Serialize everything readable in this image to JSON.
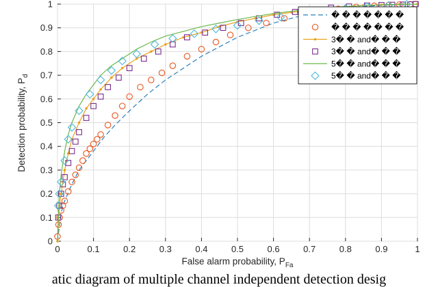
{
  "caption": "atic diagram of multiple channel independent detection desig",
  "chart_data": {
    "type": "line",
    "xlabel": "False alarm probability, P",
    "xlabel_sub": "Fa",
    "ylabel": "Detection probability, P",
    "ylabel_sub": "d",
    "xlim": [
      0,
      1
    ],
    "ylim": [
      0,
      1
    ],
    "xticks": [
      "0",
      "0.1",
      "0.2",
      "0.3",
      "0.4",
      "0.5",
      "0.6",
      "0.7",
      "0.8",
      "0.9",
      "1"
    ],
    "yticks": [
      "0",
      "0.1",
      "0.2",
      "0.3",
      "0.4",
      "0.5",
      "0.6",
      "0.7",
      "0.8",
      "0.9",
      "1"
    ],
    "grid": true,
    "legend_position": "top-right",
    "series": [
      {
        "name": "� � � � � � �",
        "style": "dashed",
        "marker": "none",
        "color": "#2a7fbd",
        "x": [
          0,
          0.01,
          0.02,
          0.04,
          0.06,
          0.08,
          0.1,
          0.13,
          0.16,
          0.2,
          0.25,
          0.3,
          0.35,
          0.4,
          0.45,
          0.5,
          0.55,
          0.6,
          0.65,
          0.7,
          0.75,
          0.8,
          0.85,
          0.9,
          0.95,
          1
        ],
        "y": [
          0,
          0.12,
          0.17,
          0.24,
          0.3,
          0.34,
          0.38,
          0.44,
          0.49,
          0.55,
          0.62,
          0.68,
          0.73,
          0.78,
          0.82,
          0.86,
          0.89,
          0.92,
          0.94,
          0.96,
          0.975,
          0.985,
          0.99,
          0.995,
          0.998,
          1
        ]
      },
      {
        "name": "� � � � � � �",
        "style": "none",
        "marker": "circle",
        "color": "#e8541c",
        "x": [
          0,
          0.003,
          0.006,
          0.01,
          0.015,
          0.02,
          0.03,
          0.04,
          0.05,
          0.06,
          0.07,
          0.08,
          0.09,
          0.1,
          0.11,
          0.12,
          0.14,
          0.16,
          0.18,
          0.2,
          0.23,
          0.26,
          0.29,
          0.32,
          0.36,
          0.4,
          0.44,
          0.48,
          0.53,
          0.58,
          0.63,
          0.68,
          0.73,
          0.78,
          0.83,
          0.88,
          0.92,
          0.95,
          0.98,
          0.995
        ],
        "y": [
          0.02,
          0.07,
          0.1,
          0.13,
          0.15,
          0.17,
          0.21,
          0.25,
          0.28,
          0.31,
          0.34,
          0.37,
          0.39,
          0.41,
          0.43,
          0.45,
          0.49,
          0.53,
          0.57,
          0.61,
          0.65,
          0.68,
          0.71,
          0.74,
          0.78,
          0.81,
          0.84,
          0.87,
          0.9,
          0.92,
          0.94,
          0.96,
          0.97,
          0.98,
          0.988,
          0.993,
          0.996,
          0.998,
          0.999,
          1
        ]
      },
      {
        "name": "3� � and� � �",
        "style": "solid",
        "marker": "dot",
        "color": "#e8a21c",
        "x": [
          0,
          0.005,
          0.01,
          0.02,
          0.03,
          0.04,
          0.06,
          0.08,
          0.1,
          0.12,
          0.15,
          0.18,
          0.22,
          0.26,
          0.3,
          0.35,
          0.4,
          0.45,
          0.5,
          0.55,
          0.6,
          0.65,
          0.7,
          0.75,
          0.8,
          0.85,
          0.9,
          0.95,
          1
        ],
        "y": [
          0,
          0.14,
          0.2,
          0.3,
          0.37,
          0.43,
          0.5,
          0.56,
          0.6,
          0.64,
          0.69,
          0.73,
          0.77,
          0.8,
          0.83,
          0.86,
          0.88,
          0.905,
          0.925,
          0.94,
          0.955,
          0.965,
          0.975,
          0.983,
          0.99,
          0.994,
          0.997,
          0.999,
          1
        ]
      },
      {
        "name": "3� � and� � �",
        "style": "none",
        "marker": "square",
        "color": "#7a2a8c",
        "x": [
          0.002,
          0.005,
          0.01,
          0.015,
          0.02,
          0.03,
          0.04,
          0.05,
          0.06,
          0.08,
          0.1,
          0.12,
          0.14,
          0.17,
          0.2,
          0.24,
          0.28,
          0.32,
          0.36,
          0.41,
          0.46,
          0.51,
          0.56,
          0.61,
          0.66,
          0.71,
          0.76,
          0.81,
          0.86,
          0.9,
          0.93,
          0.96,
          0.98,
          0.995
        ],
        "y": [
          0.1,
          0.15,
          0.2,
          0.24,
          0.27,
          0.33,
          0.38,
          0.42,
          0.46,
          0.52,
          0.57,
          0.61,
          0.65,
          0.69,
          0.73,
          0.77,
          0.8,
          0.83,
          0.86,
          0.88,
          0.9,
          0.92,
          0.94,
          0.955,
          0.967,
          0.977,
          0.985,
          0.99,
          0.994,
          0.996,
          0.997,
          0.998,
          0.999,
          1
        ]
      },
      {
        "name": "5� � and� � �",
        "style": "solid",
        "marker": "none",
        "color": "#6ab84a",
        "x": [
          0,
          0.005,
          0.01,
          0.02,
          0.03,
          0.04,
          0.06,
          0.08,
          0.1,
          0.12,
          0.15,
          0.18,
          0.22,
          0.26,
          0.3,
          0.35,
          0.4,
          0.45,
          0.5,
          0.55,
          0.6,
          0.65,
          0.7,
          0.75,
          0.8,
          0.85,
          0.9,
          0.95,
          1
        ],
        "y": [
          0,
          0.2,
          0.28,
          0.38,
          0.45,
          0.5,
          0.57,
          0.62,
          0.66,
          0.7,
          0.74,
          0.77,
          0.81,
          0.84,
          0.865,
          0.885,
          0.905,
          0.92,
          0.935,
          0.948,
          0.96,
          0.97,
          0.978,
          0.985,
          0.99,
          0.994,
          0.997,
          0.999,
          1
        ]
      },
      {
        "name": "5� � and� � �",
        "style": "none",
        "marker": "diamond",
        "color": "#4ab8d8",
        "x": [
          0.002,
          0.005,
          0.01,
          0.02,
          0.03,
          0.04,
          0.06,
          0.09,
          0.12,
          0.15,
          0.18,
          0.22,
          0.27,
          0.32,
          0.38,
          0.44,
          0.5,
          0.56,
          0.62,
          0.68,
          0.74,
          0.8,
          0.86,
          0.92,
          0.97
        ],
        "y": [
          0.15,
          0.2,
          0.25,
          0.34,
          0.43,
          0.48,
          0.55,
          0.62,
          0.68,
          0.72,
          0.76,
          0.79,
          0.83,
          0.855,
          0.875,
          0.895,
          0.91,
          0.93,
          0.945,
          0.96,
          0.972,
          0.982,
          0.99,
          0.995,
          0.999
        ]
      }
    ]
  }
}
